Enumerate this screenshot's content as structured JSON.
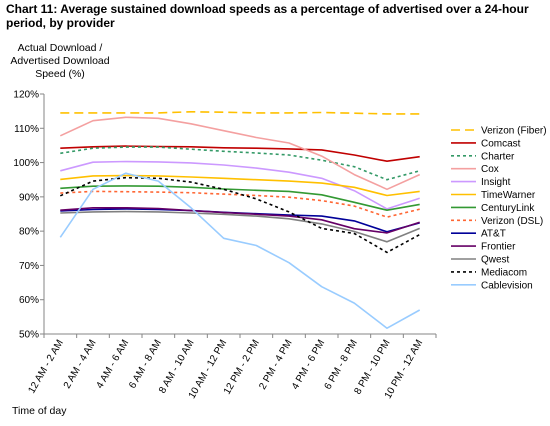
{
  "chart_data": {
    "type": "line",
    "title": "Chart 11: Average sustained download speeds as a percentage of advertised over a 24-hour period, by provider",
    "ylabel": "Actual Download / Advertised Download Speed (%)",
    "xlabel": "Time of day",
    "ylim": [
      50,
      120
    ],
    "yticks": [
      "50%",
      "60%",
      "70%",
      "80%",
      "90%",
      "100%",
      "110%",
      "120%"
    ],
    "grid": false,
    "legend_position": "right",
    "categories": [
      "12 AM - 2 AM",
      "2 AM - 4 AM",
      "4 AM - 6 AM",
      "6 AM - 8 AM",
      "8 AM - 10 AM",
      "10 AM - 12 PM",
      "12 PM - 2 PM",
      "2 PM - 4 PM",
      "4 PM - 6 PM",
      "6 PM - 8 PM",
      "8 PM - 10 PM",
      "10 PM - 12 AM"
    ],
    "series": [
      {
        "name": "Verizon (Fiber)",
        "color": "#FFC000",
        "dash": "long",
        "values": [
          114.5,
          114.5,
          114.5,
          114.5,
          114.8,
          114.7,
          114.5,
          114.5,
          114.6,
          114.4,
          114.2,
          114.2
        ]
      },
      {
        "name": "Comcast",
        "color": "#C00000",
        "dash": "solid",
        "values": [
          104.2,
          104.6,
          104.8,
          104.7,
          104.6,
          104.3,
          104.2,
          104.0,
          103.7,
          102.2,
          100.4,
          101.7
        ]
      },
      {
        "name": "Charter",
        "color": "#339966",
        "dash": "dotted",
        "values": [
          102.7,
          104.2,
          104.5,
          104.5,
          103.9,
          103.3,
          102.8,
          102.2,
          100.7,
          98.8,
          95.0,
          97.6
        ]
      },
      {
        "name": "Cox",
        "color": "#F4A0A0",
        "dash": "solid",
        "values": [
          107.8,
          112.2,
          113.2,
          112.9,
          111.3,
          109.3,
          107.3,
          105.7,
          101.9,
          96.5,
          92.2,
          96.5
        ]
      },
      {
        "name": "Insight",
        "color": "#CC99FF",
        "dash": "solid",
        "values": [
          97.6,
          100.1,
          100.3,
          100.2,
          99.9,
          99.3,
          98.4,
          97.2,
          95.4,
          91.8,
          86.5,
          89.6
        ]
      },
      {
        "name": "TimeWarner",
        "color": "#FFC000",
        "dash": "solid",
        "values": [
          95.1,
          96.1,
          96.2,
          96.1,
          95.8,
          95.4,
          95.0,
          94.6,
          94.0,
          92.8,
          90.4,
          91.6
        ]
      },
      {
        "name": "CenturyLink",
        "color": "#339933",
        "dash": "solid",
        "values": [
          92.5,
          93.1,
          93.2,
          93.1,
          92.8,
          92.3,
          91.9,
          91.6,
          90.6,
          88.4,
          86.1,
          87.8
        ]
      },
      {
        "name": "Verizon (DSL)",
        "color": "#FF6633",
        "dash": "dotted",
        "values": [
          91.1,
          91.6,
          91.5,
          91.4,
          91.2,
          90.8,
          90.4,
          89.9,
          88.9,
          87.3,
          84.1,
          86.4
        ]
      },
      {
        "name": "AT&T",
        "color": "#000099",
        "dash": "solid",
        "values": [
          85.9,
          86.3,
          86.5,
          86.3,
          86.0,
          85.5,
          85.1,
          84.7,
          84.4,
          83.0,
          79.8,
          82.4
        ]
      },
      {
        "name": "Frontier",
        "color": "#660066",
        "dash": "solid",
        "values": [
          86.1,
          86.8,
          86.8,
          86.6,
          86.0,
          85.4,
          84.9,
          84.4,
          83.3,
          80.7,
          79.5,
          82.6
        ]
      },
      {
        "name": "Qwest",
        "color": "#808080",
        "dash": "solid",
        "values": [
          85.3,
          85.6,
          85.7,
          85.6,
          85.3,
          84.9,
          84.4,
          83.6,
          82.1,
          79.9,
          76.9,
          80.8
        ]
      },
      {
        "name": "Mediacom",
        "color": "#000000",
        "dash": "dotted",
        "values": [
          90.3,
          94.6,
          95.6,
          95.4,
          94.3,
          92.2,
          89.4,
          85.6,
          80.8,
          79.3,
          73.8,
          79.0
        ]
      },
      {
        "name": "Cablevision",
        "color": "#99CCFF",
        "dash": "solid",
        "values": [
          78.2,
          92.2,
          96.9,
          94.6,
          86.8,
          77.9,
          75.8,
          70.8,
          63.8,
          59.0,
          51.7,
          57.0
        ]
      }
    ]
  }
}
